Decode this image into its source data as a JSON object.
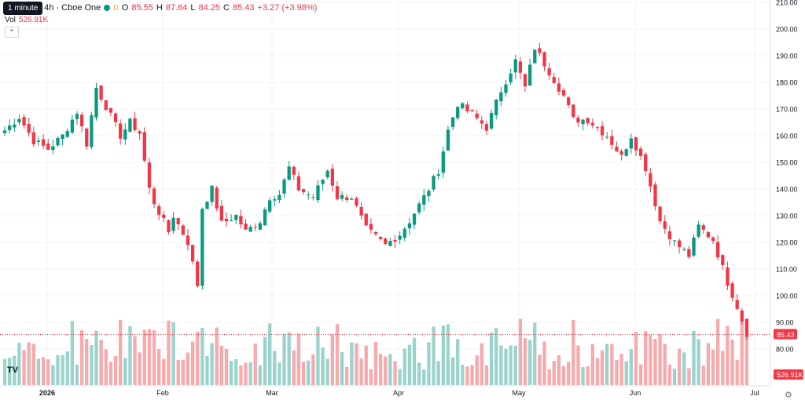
{
  "legend": {
    "title": "…gy Inc · 4h · Cboe One",
    "session": "D",
    "o_label": "O",
    "o": "85.55",
    "h_label": "H",
    "h": "87.64",
    "l_label": "L",
    "l": "84.25",
    "c_label": "C",
    "c": "85.43",
    "change": "+3.27 (+3.98%)"
  },
  "tooltip": "1 minute",
  "volume": {
    "label": "Vol",
    "value": "526.91K"
  },
  "colors": {
    "up": "#089981",
    "down": "#f23645",
    "up_vol": "#9ad3cc",
    "down_vol": "#f7a9ac",
    "grid": "#f0f3fa",
    "price_tag": "#f23645"
  },
  "chart_data": {
    "type": "candlestick",
    "ylim": [
      75,
      210
    ],
    "y_ticks": [
      "210.00",
      "200.00",
      "190.00",
      "180.00",
      "170.00",
      "160.00",
      "150.00",
      "140.00",
      "130.00",
      "120.00",
      "110.00",
      "100.00",
      "90.00",
      "80.00"
    ],
    "x_tick_labels": [
      "2026",
      "Feb",
      "Mar",
      "Apr",
      "May",
      "Jun",
      "Jul"
    ],
    "last_price": "85.43",
    "last_volume": "526.91K",
    "close_path": [
      [
        0,
        162
      ],
      [
        3,
        167
      ],
      [
        6,
        158
      ],
      [
        9,
        155
      ],
      [
        12,
        160
      ],
      [
        15,
        169
      ],
      [
        17,
        157
      ],
      [
        19,
        178
      ],
      [
        21,
        171
      ],
      [
        24,
        160
      ],
      [
        26,
        165
      ],
      [
        28,
        161
      ],
      [
        30,
        140
      ],
      [
        31,
        135
      ],
      [
        34,
        124
      ],
      [
        35,
        130
      ],
      [
        38,
        120
      ],
      [
        40,
        104
      ],
      [
        41,
        133
      ],
      [
        43,
        140
      ],
      [
        45,
        127
      ],
      [
        48,
        130
      ],
      [
        50,
        124
      ],
      [
        53,
        128
      ],
      [
        55,
        137
      ],
      [
        57,
        138
      ],
      [
        59,
        148
      ],
      [
        61,
        140
      ],
      [
        64,
        137
      ],
      [
        67,
        147
      ],
      [
        69,
        137
      ],
      [
        72,
        137
      ],
      [
        75,
        125
      ],
      [
        79,
        119
      ],
      [
        82,
        123
      ],
      [
        84,
        128
      ],
      [
        88,
        140
      ],
      [
        90,
        147
      ],
      [
        92,
        162
      ],
      [
        94,
        172
      ],
      [
        97,
        168
      ],
      [
        100,
        163
      ],
      [
        103,
        177
      ],
      [
        106,
        188
      ],
      [
        108,
        178
      ],
      [
        110,
        193
      ],
      [
        113,
        184
      ],
      [
        116,
        175
      ],
      [
        118,
        166
      ],
      [
        121,
        166
      ],
      [
        125,
        160
      ],
      [
        128,
        152
      ],
      [
        130,
        160
      ],
      [
        133,
        148
      ],
      [
        136,
        128
      ],
      [
        139,
        120
      ],
      [
        142,
        115
      ],
      [
        144,
        126
      ],
      [
        147,
        121
      ],
      [
        150,
        105
      ],
      [
        152,
        96
      ],
      [
        154,
        86
      ]
    ],
    "candle_count": 155
  }
}
